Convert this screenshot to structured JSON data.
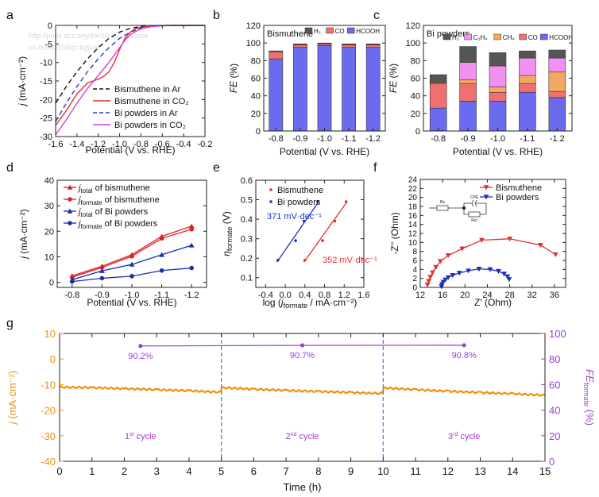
{
  "chart_data": [
    {
      "panel": "a",
      "type": "line",
      "xlabel": "Potential (V vs. RHE)",
      "ylabel": "j (mA·cm⁻²)",
      "xlim": [
        -1.6,
        -0.2
      ],
      "ylim": [
        -30,
        0
      ],
      "xticks": [
        -1.6,
        -1.4,
        -1.2,
        -1.0,
        -0.8,
        -0.6,
        -0.4,
        -0.2
      ],
      "yticks": [
        -30,
        -25,
        -20,
        -15,
        -10,
        -5,
        0
      ],
      "xtick_labels": [
        "-1.6",
        "-1.4",
        "-1.2",
        "-1.0",
        "-0.8",
        "-0.6",
        "-0.4",
        "-0.2"
      ],
      "ytick_labels": [
        "-30",
        "-25",
        "-20",
        "-15",
        "-10",
        "-5",
        "0"
      ],
      "watermark": "http://pubs.acs.org/doi/10.1021/acsnano.0c03310/fig=fig5ref",
      "series": [
        {
          "name": "Bismuthene in Ar",
          "color": "#111111",
          "dash": "6,4",
          "x": [
            -1.6,
            -1.5,
            -1.4,
            -1.3,
            -1.2,
            -1.1,
            -1.0,
            -0.9,
            -0.8,
            -0.7,
            -0.6,
            -0.5,
            -0.4,
            -0.3,
            -0.2
          ],
          "y": [
            -21,
            -16.5,
            -12.5,
            -9,
            -6,
            -3.5,
            -1.8,
            -0.8,
            -0.3,
            -0.1,
            0,
            0,
            0,
            0,
            0
          ]
        },
        {
          "name": "Bismuthene in CO₂",
          "color": "#e53030",
          "dash": "",
          "x": [
            -1.6,
            -1.5,
            -1.4,
            -1.3,
            -1.25,
            -1.2,
            -1.15,
            -1.1,
            -1.05,
            -1.0,
            -0.95,
            -0.9,
            -0.85,
            -0.8,
            -0.7,
            -0.6,
            -0.5,
            -0.4,
            -0.3,
            -0.2
          ],
          "y": [
            -27,
            -23,
            -18.5,
            -15.5,
            -15,
            -14.5,
            -13.8,
            -12.5,
            -10,
            -6.5,
            -3.5,
            -1.8,
            -0.9,
            -0.5,
            -0.2,
            -0.1,
            0,
            0,
            0,
            0
          ]
        },
        {
          "name": "Bi powders in Ar",
          "color": "#2b3fbf",
          "dash": "6,4",
          "x": [
            -1.6,
            -1.5,
            -1.4,
            -1.3,
            -1.2,
            -1.1,
            -1.0,
            -0.9,
            -0.8,
            -0.7,
            -0.6,
            -0.5,
            -0.4,
            -0.3,
            -0.2
          ],
          "y": [
            -26,
            -21,
            -16.5,
            -12.5,
            -9,
            -6,
            -3.5,
            -1.8,
            -0.8,
            -0.3,
            -0.1,
            0,
            0,
            0,
            0
          ]
        },
        {
          "name": "Bi powders in CO₂",
          "color": "#d63fd6",
          "dash": "",
          "x": [
            -1.6,
            -1.5,
            -1.4,
            -1.3,
            -1.2,
            -1.1,
            -1.0,
            -0.95,
            -0.9,
            -0.8,
            -0.7,
            -0.6,
            -0.5,
            -0.4,
            -0.3,
            -0.2
          ],
          "y": [
            -29.5,
            -25.5,
            -21,
            -17,
            -13.5,
            -10,
            -6,
            -4,
            -2.5,
            -0.9,
            -0.3,
            -0.1,
            0,
            0,
            0,
            0
          ]
        }
      ]
    },
    {
      "panel": "b",
      "type": "bar",
      "title": "Bismuthene",
      "xlabel": "Potential (V vs. RHE)",
      "ylabel": "FE (%)",
      "ylim": [
        0,
        120
      ],
      "yticks": [
        0,
        20,
        40,
        60,
        80,
        100,
        120
      ],
      "ytick_labels": [
        "0",
        "20",
        "40",
        "60",
        "80",
        "100",
        "120"
      ],
      "categories": [
        "-0.8",
        "-0.9",
        "-1.0",
        "-1.1",
        "-1.2"
      ],
      "series": [
        {
          "name": "HCOOH",
          "color": "#6b6bf0",
          "values": [
            82,
            95,
            97,
            95,
            95
          ]
        },
        {
          "name": "CO",
          "color": "#f07070",
          "values": [
            8,
            3,
            2,
            3,
            3
          ]
        },
        {
          "name": "H₂",
          "color": "#555555",
          "values": [
            1,
            1,
            1,
            1,
            1
          ]
        }
      ]
    },
    {
      "panel": "c",
      "type": "bar",
      "title": "Bi powders",
      "xlabel": "Potential (V vs. RHE)",
      "ylabel": "FE (%)",
      "ylim": [
        0,
        120
      ],
      "yticks": [
        0,
        20,
        40,
        60,
        80,
        100,
        120
      ],
      "ytick_labels": [
        "0",
        "20",
        "40",
        "60",
        "80",
        "100",
        "120"
      ],
      "categories": [
        "-0.8",
        "-0.9",
        "-1.0",
        "-1.1",
        "-1.2"
      ],
      "series": [
        {
          "name": "HCOOH",
          "color": "#6b6bf0",
          "values": [
            26,
            34,
            34,
            44,
            38
          ]
        },
        {
          "name": "CO",
          "color": "#f07070",
          "values": [
            28,
            20,
            10,
            10,
            7
          ]
        },
        {
          "name": "CH₄",
          "color": "#f5a860",
          "values": [
            1,
            4,
            6,
            9,
            22
          ]
        },
        {
          "name": "C₂H₄",
          "color": "#f090f0",
          "values": [
            0,
            20,
            24,
            20,
            16
          ]
        },
        {
          "name": "H₂",
          "color": "#555555",
          "values": [
            9,
            18,
            15,
            8,
            9
          ]
        }
      ]
    },
    {
      "panel": "d",
      "type": "line",
      "xlabel": "Potential (V vs. RHE)",
      "ylabel": "j (mA·cm⁻²)",
      "ylim": [
        -2,
        40
      ],
      "yticks": [
        0,
        10,
        20,
        30,
        40
      ],
      "ytick_labels": [
        "0",
        "10",
        "20",
        "30",
        "40"
      ],
      "categories": [
        "-0.8",
        "-0.9",
        "-1.0",
        "-1.1",
        "-1.2"
      ],
      "series": [
        {
          "name": "j total of bismuthene",
          "sub": "total",
          "rest": " of bismuthene",
          "color": "#e02020",
          "marker": "triangle",
          "values": [
            2.5,
            6.3,
            10.8,
            18,
            22
          ]
        },
        {
          "name": "j formate of bismuthene",
          "sub": "formate",
          "rest": " of bismuthene",
          "color": "#e02020",
          "marker": "circle",
          "values": [
            2,
            5.8,
            10.2,
            17.2,
            20.8
          ]
        },
        {
          "name": "j total of Bi powders",
          "sub": "total",
          "rest": " of Bi powders",
          "color": "#1a2fb0",
          "marker": "triangle",
          "values": [
            1,
            4.5,
            7,
            10.8,
            14.5
          ]
        },
        {
          "name": "j formate of Bi powders",
          "sub": "formate",
          "rest": " of Bi powders",
          "color": "#1a2fb0",
          "marker": "circle",
          "values": [
            0.3,
            1.6,
            2.4,
            4.6,
            5.6
          ]
        }
      ]
    },
    {
      "panel": "e",
      "type": "scatter",
      "xlabel": "log (j_formate / mA·cm⁻²)",
      "ylabel": "η formate (V)",
      "xlim": [
        -0.6,
        1.6
      ],
      "ylim": [
        0.05,
        0.6
      ],
      "xticks": [
        -0.4,
        0.0,
        0.4,
        0.8,
        1.2,
        1.6
      ],
      "yticks": [
        0.1,
        0.2,
        0.3,
        0.4,
        0.5,
        0.6
      ],
      "xtick_labels": [
        "-0.4",
        "0.0",
        "0.4",
        "0.8",
        "1.2",
        "1.6"
      ],
      "ytick_labels": [
        "0.1",
        "0.2",
        "0.3",
        "0.4",
        "0.5",
        "0.6"
      ],
      "series": [
        {
          "name": "Bismuthene",
          "color": "#e03030",
          "x": [
            0.4,
            0.76,
            1.01,
            1.24
          ],
          "y": [
            0.19,
            0.29,
            0.39,
            0.49
          ],
          "fit_x": [
            0.38,
            1.26
          ],
          "fit_y": [
            0.18,
            0.49
          ],
          "slope_label": "352 mV·dec⁻¹"
        },
        {
          "name": "Bi powders",
          "color": "#1a2fd0",
          "x": [
            -0.15,
            0.21,
            0.38,
            0.66
          ],
          "y": [
            0.19,
            0.29,
            0.39,
            0.49
          ],
          "fit_x": [
            -0.17,
            0.68
          ],
          "fit_y": [
            0.18,
            0.49
          ],
          "slope_label": "371 mV·dec⁻¹"
        }
      ]
    },
    {
      "panel": "f",
      "type": "line",
      "xlabel": "Z' (Ohm)",
      "ylabel": "-Z'' (Ohm)",
      "xlim": [
        12,
        38
      ],
      "ylim": [
        0,
        24
      ],
      "xticks": [
        12,
        16,
        20,
        24,
        28,
        32,
        36
      ],
      "yticks": [
        0,
        2,
        4,
        6,
        8,
        10,
        12,
        14,
        16,
        18,
        20,
        22,
        24
      ],
      "xtick_labels": [
        "12",
        "16",
        "20",
        "24",
        "28",
        "32",
        "36"
      ],
      "ytick_labels": [
        "0",
        "2",
        "4",
        "6",
        "8",
        "10",
        "12",
        "14",
        "16",
        "18",
        "20",
        "22",
        "24"
      ],
      "circuit_labels": [
        "Rs",
        "CPE",
        "Rct"
      ],
      "series": [
        {
          "name": "Bismuthene",
          "color": "#e03030",
          "marker": "triangle-down",
          "x": [
            13.3,
            13.5,
            13.8,
            14.2,
            14.8,
            15.6,
            17,
            19.5,
            23,
            28,
            33.5,
            36.2
          ],
          "y": [
            0.6,
            1.4,
            2.3,
            3.3,
            4.5,
            5.8,
            7.1,
            8.6,
            10.5,
            10.8,
            9.4,
            7.3
          ]
        },
        {
          "name": "Bi powders",
          "color": "#1a2fc0",
          "marker": "triangle-down",
          "x": [
            15.8,
            15.9,
            16.1,
            16.5,
            17,
            17.8,
            19,
            20.6,
            22.5,
            24.5,
            26,
            27,
            27.6,
            27.9
          ],
          "y": [
            0.2,
            0.7,
            1.2,
            1.7,
            2.2,
            2.7,
            3.2,
            3.7,
            4.1,
            4.0,
            3.6,
            3.0,
            2.4,
            1.8
          ]
        }
      ]
    },
    {
      "panel": "g",
      "type": "line",
      "xlabel": "Time (h)",
      "ylabel": "j (mA·cm⁻²)",
      "ylabel2": "FE formate (%)",
      "xlim": [
        0,
        15
      ],
      "ylim": [
        -40,
        10
      ],
      "ylim2": [
        0,
        100
      ],
      "xticks": [
        0,
        1,
        2,
        3,
        4,
        5,
        6,
        7,
        8,
        9,
        10,
        11,
        12,
        13,
        14,
        15
      ],
      "yticks": [
        -40,
        -30,
        -20,
        -10,
        0,
        10
      ],
      "yticks2": [
        0,
        20,
        40,
        60,
        80,
        100
      ],
      "xtick_labels": [
        "0",
        "1",
        "2",
        "3",
        "4",
        "5",
        "6",
        "7",
        "8",
        "9",
        "10",
        "11",
        "12",
        "13",
        "14",
        "15"
      ],
      "ytick_labels": [
        "-40",
        "-30",
        "-20",
        "-10",
        "0",
        "10"
      ],
      "ytick_labels2": [
        "0",
        "20",
        "40",
        "60",
        "80",
        "100"
      ],
      "cycle_boundaries": [
        5,
        10
      ],
      "current": {
        "color": "#f0900f",
        "x": [
          0,
          1,
          2,
          3,
          4,
          4.98,
          5.02,
          6,
          7,
          8,
          9,
          9.98,
          10.02,
          11,
          12,
          13,
          14,
          15
        ],
        "y": [
          -11,
          -11.2,
          -11.6,
          -12,
          -12.4,
          -13,
          -11.2,
          -11.8,
          -12.3,
          -12.7,
          -13.1,
          -13.5,
          -11.3,
          -12,
          -12.6,
          -13.1,
          -13.6,
          -14.2
        ]
      },
      "fe": {
        "color": "#a040d0",
        "x": [
          2.5,
          7.5,
          12.5
        ],
        "y": [
          90.2,
          90.7,
          90.8
        ],
        "labels": [
          "90.2%",
          "90.7%",
          "90.8%"
        ]
      },
      "cycles": [
        {
          "num": "1",
          "sup": "st",
          "text": " cycle",
          "x": 2.5
        },
        {
          "num": "2",
          "sup": "nd",
          "text": " cycle",
          "x": 7.5
        },
        {
          "num": "3",
          "sup": "rd",
          "text": " cycle",
          "x": 12.5
        }
      ],
      "cycle_y": -30
    }
  ]
}
